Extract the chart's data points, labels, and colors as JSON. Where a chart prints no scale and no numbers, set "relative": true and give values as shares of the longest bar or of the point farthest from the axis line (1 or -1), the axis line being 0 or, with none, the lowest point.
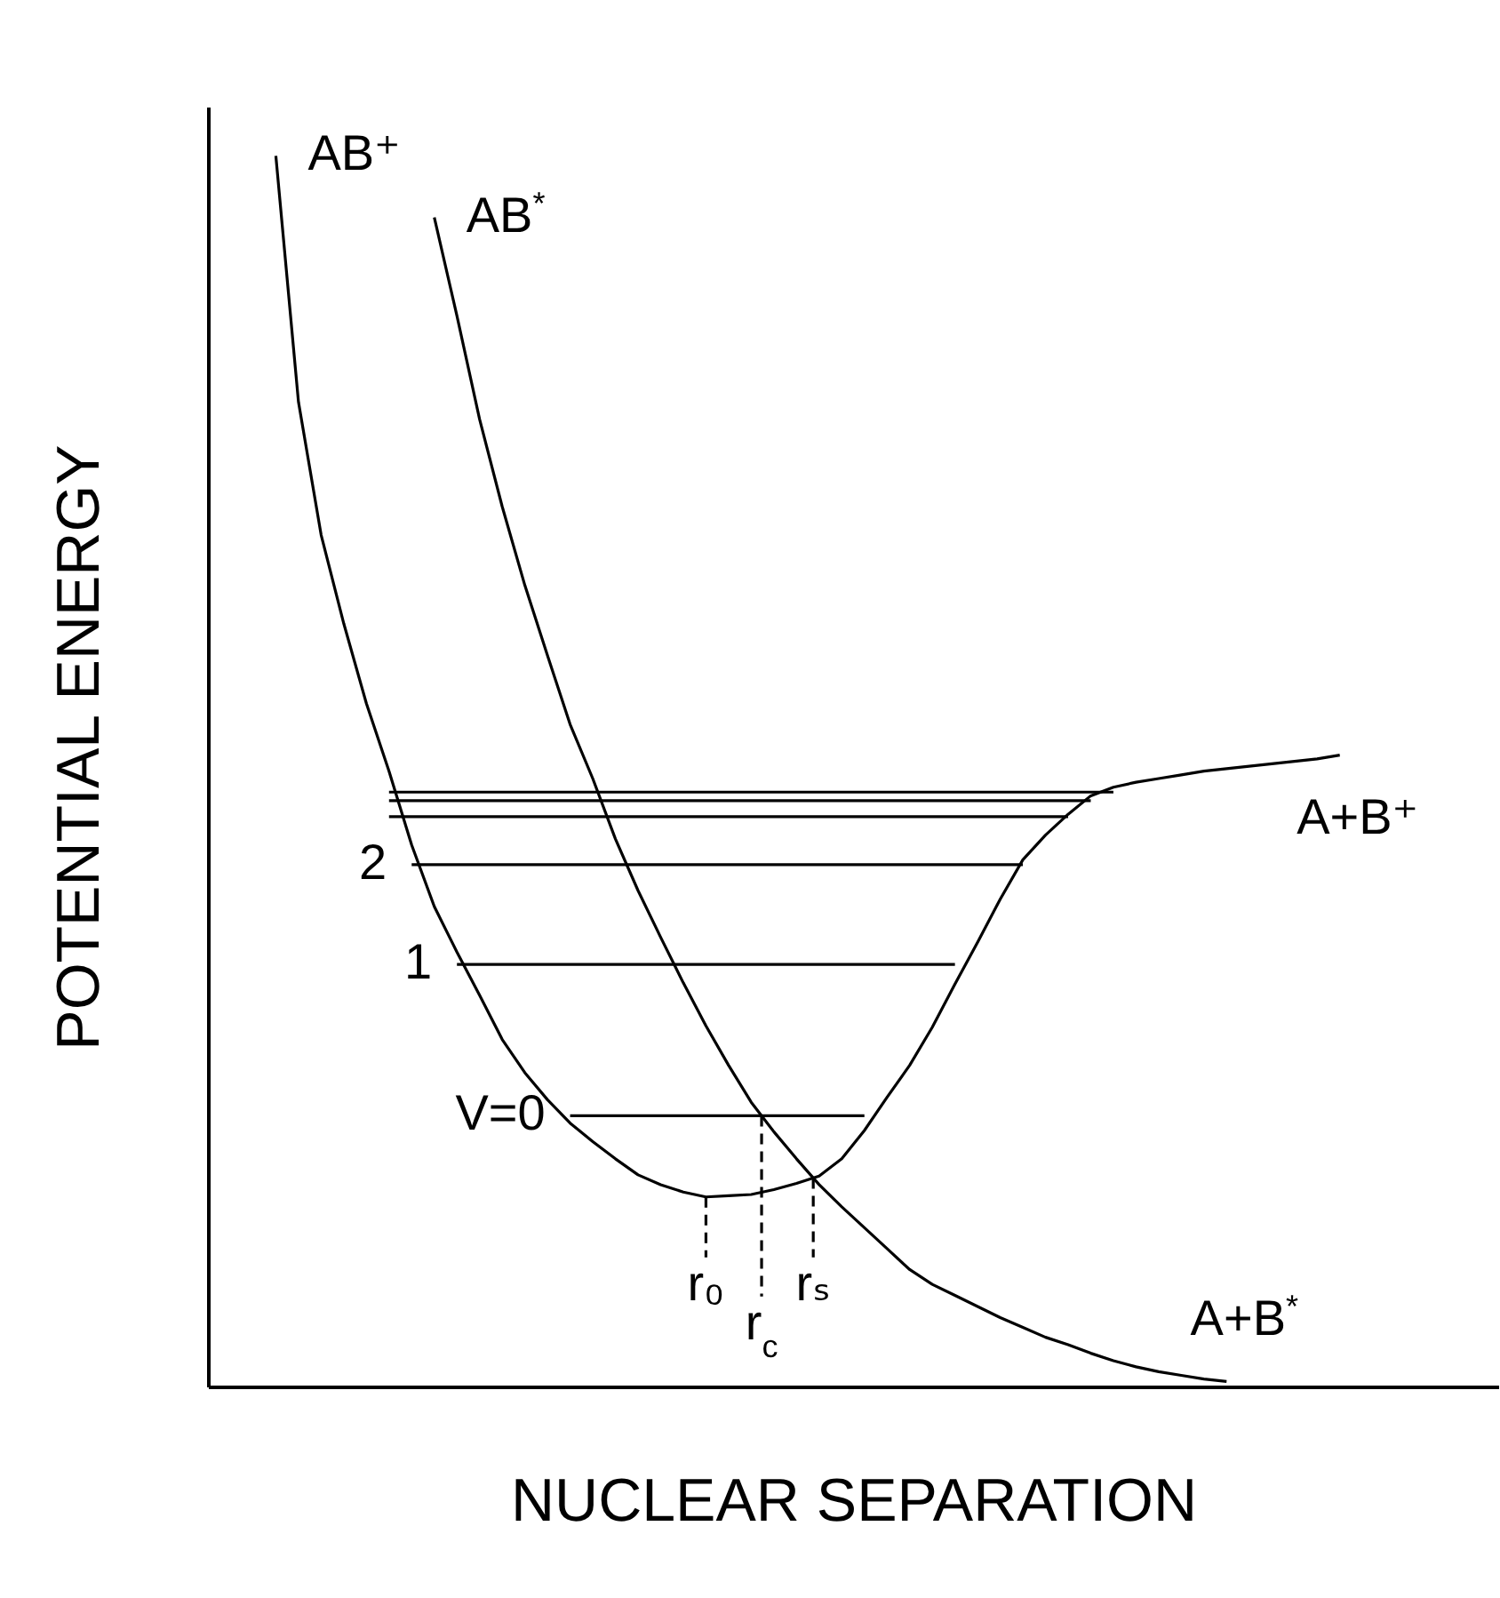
{
  "chart_data": {
    "type": "line",
    "relative": true,
    "xlabel": "NUCLEAR SEPARATION",
    "ylabel": "POTENTIAL ENERGY",
    "line_style": "solid",
    "categories": [
      null,
      null,
      null,
      null,
      null,
      null,
      null,
      null,
      null,
      null,
      null,
      null,
      null,
      null,
      null,
      null,
      null,
      null,
      null,
      null,
      null,
      null,
      null,
      null,
      null,
      null,
      null,
      null,
      null,
      null,
      null,
      null,
      null,
      null,
      null,
      null,
      null,
      null,
      null,
      null,
      null,
      null,
      null,
      null,
      null,
      null,
      null,
      null,
      null,
      null,
      null,
      null,
      null,
      null,
      null,
      null,
      null,
      null
    ],
    "series": [
      {
        "name": "AB⁺",
        "color": "#000000",
        "values": [
          null,
          null,
          null,
          1.0,
          0.8,
          0.692,
          0.62,
          0.555,
          0.5,
          0.44,
          0.39,
          0.353,
          0.318,
          0.282,
          0.255,
          0.233,
          0.214,
          0.199,
          0.185,
          0.172,
          0.164,
          0.158,
          0.154,
          0.155,
          0.156,
          0.16,
          0.165,
          0.171,
          0.185,
          0.208,
          0.235,
          0.261,
          0.292,
          0.327,
          0.361,
          0.396,
          0.428,
          0.448,
          0.465,
          0.48,
          0.487,
          0.491,
          0.494,
          0.497,
          0.5,
          0.502,
          0.504,
          0.506,
          0.508,
          0.51,
          0.513,
          null,
          null,
          null,
          null,
          null,
          null,
          null
        ]
      },
      {
        "name": "AB$^{*}$",
        "color": "#000000",
        "values": [
          null,
          null,
          null,
          null,
          null,
          null,
          null,
          null,
          null,
          null,
          0.95,
          0.87,
          0.786,
          0.715,
          0.651,
          0.594,
          0.538,
          0.494,
          0.445,
          0.403,
          0.365,
          0.328,
          0.293,
          0.261,
          0.231,
          0.207,
          0.185,
          0.164,
          0.146,
          0.129,
          0.112,
          0.095,
          0.083,
          0.074,
          0.065,
          0.056,
          0.048,
          0.04,
          0.034,
          0.027,
          0.021,
          0.016,
          0.012,
          0.009,
          0.006,
          0.004,
          null,
          null,
          null,
          null,
          null,
          null,
          null,
          null,
          null,
          null,
          null,
          null
        ]
      },
      {
        "name": "V=0",
        "color": "#000000",
        "values": [
          null,
          null,
          null,
          null,
          null,
          null,
          null,
          null,
          null,
          null,
          null,
          null,
          null,
          null,
          null,
          null,
          0.22,
          0.22,
          0.22,
          0.22,
          0.22,
          0.22,
          0.22,
          0.22,
          0.22,
          0.22,
          0.22,
          0.22,
          0.22,
          0.22,
          null,
          null,
          null,
          null,
          null,
          null,
          null,
          null,
          null,
          null,
          null,
          null,
          null,
          null,
          null,
          null,
          null,
          null,
          null,
          null,
          null,
          null,
          null,
          null,
          null,
          null,
          null,
          null
        ]
      },
      {
        "name": "1",
        "color": "#000000",
        "values": [
          null,
          null,
          null,
          null,
          null,
          null,
          null,
          null,
          null,
          null,
          null,
          0.343,
          0.343,
          0.343,
          0.343,
          0.343,
          0.343,
          0.343,
          0.343,
          0.343,
          0.343,
          0.343,
          0.343,
          0.343,
          0.343,
          0.343,
          0.343,
          0.343,
          0.343,
          0.343,
          0.343,
          0.343,
          0.343,
          0.343,
          null,
          null,
          null,
          null,
          null,
          null,
          null,
          null,
          null,
          null,
          null,
          null,
          null,
          null,
          null,
          null,
          null,
          null,
          null,
          null,
          null,
          null,
          null,
          null
        ]
      },
      {
        "name": "2",
        "color": "#000000",
        "values": [
          null,
          null,
          null,
          null,
          null,
          null,
          null,
          null,
          null,
          0.424,
          0.424,
          0.424,
          0.424,
          0.424,
          0.424,
          0.424,
          0.424,
          0.424,
          0.424,
          0.424,
          0.424,
          0.424,
          0.424,
          0.424,
          0.424,
          0.424,
          0.424,
          0.424,
          0.424,
          0.424,
          0.424,
          0.424,
          0.424,
          0.424,
          0.424,
          0.424,
          0.424,
          null,
          null,
          null,
          null,
          null,
          null,
          null,
          null,
          null,
          null,
          null,
          null,
          null,
          null,
          null,
          null,
          null,
          null,
          null,
          null,
          null
        ]
      },
      {
        "color": "#000000",
        "values": [
          null,
          null,
          null,
          null,
          null,
          null,
          null,
          null,
          0.463,
          0.463,
          0.463,
          0.463,
          0.463,
          0.463,
          0.463,
          0.463,
          0.463,
          0.463,
          0.463,
          0.463,
          0.463,
          0.463,
          0.463,
          0.463,
          0.463,
          0.463,
          0.463,
          0.463,
          0.463,
          0.463,
          0.463,
          0.463,
          0.463,
          0.463,
          0.463,
          0.463,
          0.463,
          0.463,
          0.463,
          null,
          null,
          null,
          null,
          null,
          null,
          null,
          null,
          null,
          null,
          null,
          null,
          null,
          null,
          null,
          null,
          null,
          null,
          null
        ]
      },
      {
        "color": "#000000",
        "values": [
          null,
          null,
          null,
          null,
          null,
          null,
          null,
          null,
          0.476,
          0.476,
          0.476,
          0.476,
          0.476,
          0.476,
          0.476,
          0.476,
          0.476,
          0.476,
          0.476,
          0.476,
          0.476,
          0.476,
          0.476,
          0.476,
          0.476,
          0.476,
          0.476,
          0.476,
          0.476,
          0.476,
          0.476,
          0.476,
          0.476,
          0.476,
          0.476,
          0.476,
          0.476,
          0.476,
          0.476,
          0.476,
          null,
          null,
          null,
          null,
          null,
          null,
          null,
          null,
          null,
          null,
          null,
          null,
          null,
          null,
          null,
          null,
          null,
          null
        ]
      },
      {
        "color": "#000000",
        "values": [
          null,
          null,
          null,
          null,
          null,
          null,
          null,
          null,
          0.483,
          0.483,
          0.483,
          0.483,
          0.483,
          0.483,
          0.483,
          0.483,
          0.483,
          0.483,
          0.483,
          0.483,
          0.483,
          0.483,
          0.483,
          0.483,
          0.483,
          0.483,
          0.483,
          0.483,
          0.483,
          0.483,
          0.483,
          0.483,
          0.483,
          0.483,
          0.483,
          0.483,
          0.483,
          0.483,
          0.483,
          0.483,
          0.483,
          null,
          null,
          null,
          null,
          null,
          null,
          null,
          null,
          null,
          null,
          null,
          null,
          null,
          null,
          null,
          null,
          null
        ]
      }
    ],
    "annotations": [
      "A+B⁺",
      "A+B$^{*}$",
      "r₀",
      "r$_{c}$",
      "rₛ"
    ]
  }
}
